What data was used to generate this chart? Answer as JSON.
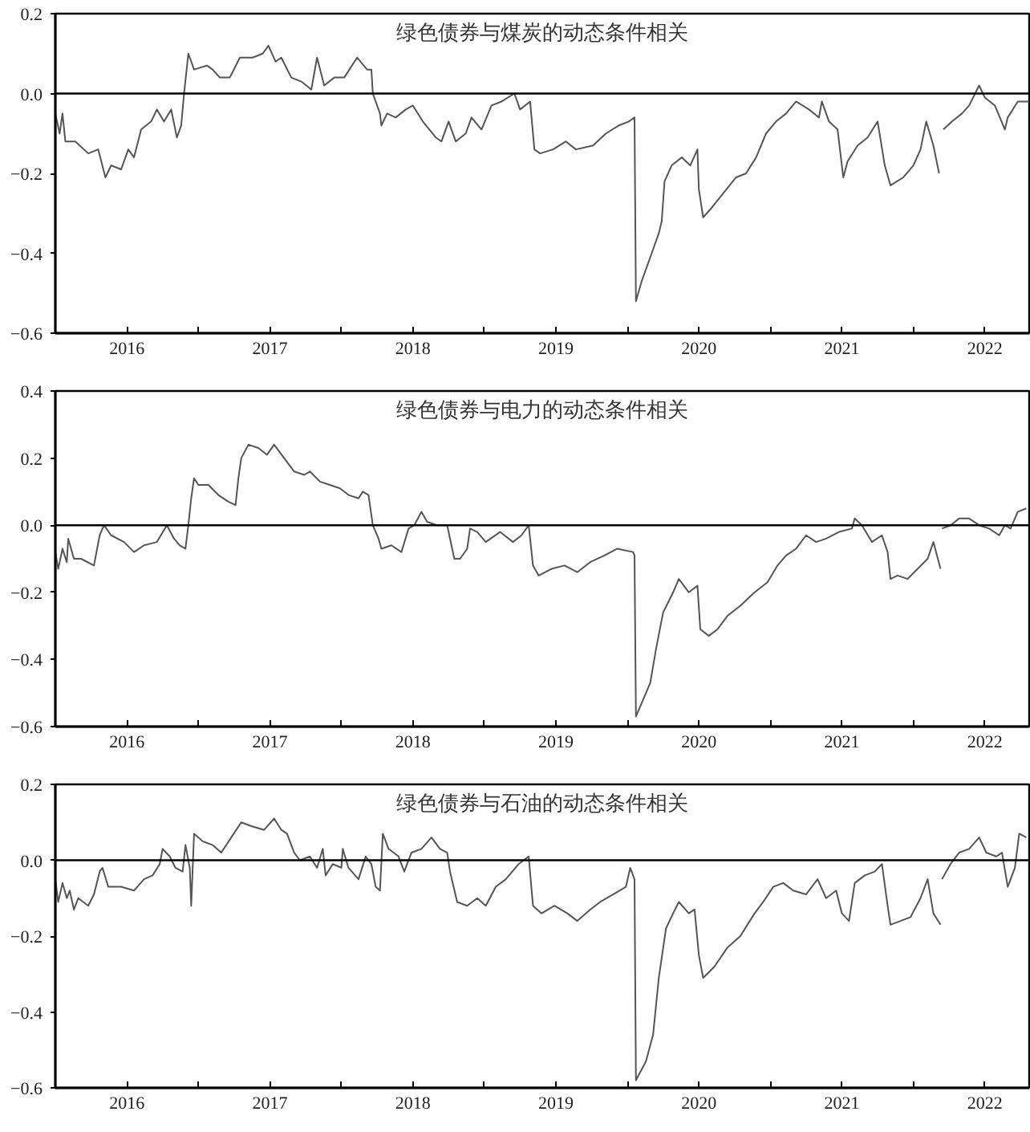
{
  "chart_data": [
    {
      "type": "line",
      "title": "绿色债券与煤炭的动态条件相关",
      "color": "#555555",
      "grid": false,
      "xlim": [
        2016.0,
        2022.81
      ],
      "ylim": [
        -0.6,
        0.2
      ],
      "xticks": [
        {
          "value": 2016.5,
          "label": "2016"
        },
        {
          "value": 2017,
          "label": null
        },
        {
          "value": 2017.5,
          "label": "2017"
        },
        {
          "value": 2018,
          "label": null
        },
        {
          "value": 2018.5,
          "label": "2018"
        },
        {
          "value": 2019,
          "label": null
        },
        {
          "value": 2019.5,
          "label": "2019"
        },
        {
          "value": 2020,
          "label": null
        },
        {
          "value": 2020.5,
          "label": "2020"
        },
        {
          "value": 2021,
          "label": null
        },
        {
          "value": 2021.5,
          "label": "2021"
        },
        {
          "value": 2022,
          "label": null
        },
        {
          "value": 2022.5,
          "label": "2022"
        }
      ],
      "yticks": [
        {
          "value": -0.6,
          "label": "−0.6"
        },
        {
          "value": -0.4,
          "label": "−0.4"
        },
        {
          "value": -0.2,
          "label": "−0.2"
        },
        {
          "value": 0,
          "label": "0.0"
        },
        {
          "value": 0.2,
          "label": "0.2"
        }
      ],
      "ref_lines": [
        {
          "axis": "y",
          "value": 0,
          "label": null,
          "color": "#000000"
        }
      ],
      "x": [
        2016.0,
        2016.03,
        2016.05,
        2016.07,
        2016.14,
        2016.23,
        2016.3,
        2016.35,
        2016.39,
        2016.46,
        2016.51,
        2016.55,
        2016.6,
        2016.67,
        2016.71,
        2016.76,
        2016.81,
        2016.85,
        2016.88,
        2016.9,
        2016.93,
        2016.97,
        2017.06,
        2017.1,
        2017.15,
        2017.22,
        2017.29,
        2017.38,
        2017.45,
        2017.49,
        2017.54,
        2017.58,
        2017.65,
        2017.72,
        2017.79,
        2017.83,
        2017.88,
        2017.95,
        2018.02,
        2018.11,
        2018.18,
        2018.21,
        2018.22,
        2018.27,
        2018.28,
        2018.32,
        2018.38,
        2018.45,
        2018.5,
        2018.57,
        2018.66,
        2018.7,
        2018.75,
        2018.8,
        2018.87,
        2018.91,
        2018.98,
        2019.05,
        2019.12,
        2019.21,
        2019.25,
        2019.32,
        2019.35,
        2019.39,
        2019.48,
        2019.57,
        2019.64,
        2019.76,
        2019.85,
        2019.94,
        2020.01,
        2020.05,
        2020.06,
        2020.1,
        2020.17,
        2020.22,
        2020.24,
        2020.26,
        2020.31,
        2020.38,
        2020.44,
        2020.49,
        2020.5,
        2020.53,
        2020.58,
        2020.67,
        2020.76,
        2020.83,
        2020.9,
        2020.97,
        2021.04,
        2021.11,
        2021.18,
        2021.27,
        2021.34,
        2021.36,
        2021.41,
        2021.47,
        2021.51,
        2021.54,
        2021.61,
        2021.68,
        2021.75,
        2021.8,
        2021.84,
        2021.93,
        2022.0,
        2022.05,
        2022.09,
        2022.14,
        2022.18,
        2022.195,
        2022.21,
        2022.27,
        2022.34,
        2022.39,
        2022.46,
        2022.5,
        2022.57,
        2022.64,
        2022.66,
        2022.73,
        2022.81
      ],
      "values": [
        -0.05,
        -0.1,
        -0.05,
        -0.12,
        -0.12,
        -0.15,
        -0.14,
        -0.21,
        -0.18,
        -0.19,
        -0.14,
        -0.16,
        -0.09,
        -0.07,
        -0.04,
        -0.07,
        -0.04,
        -0.11,
        -0.08,
        0.0,
        0.1,
        0.06,
        0.07,
        0.06,
        0.04,
        0.04,
        0.09,
        0.09,
        0.1,
        0.12,
        0.08,
        0.09,
        0.04,
        0.03,
        0.01,
        0.09,
        0.02,
        0.04,
        0.04,
        0.09,
        0.06,
        0.06,
        0.0,
        -0.05,
        -0.08,
        -0.05,
        -0.06,
        -0.04,
        -0.03,
        -0.07,
        -0.11,
        -0.12,
        -0.07,
        -0.12,
        -0.1,
        -0.06,
        -0.09,
        -0.03,
        -0.02,
        0.0,
        -0.04,
        -0.02,
        -0.14,
        -0.15,
        -0.14,
        -0.12,
        -0.14,
        -0.13,
        -0.1,
        -0.08,
        -0.07,
        -0.06,
        -0.52,
        -0.47,
        -0.4,
        -0.35,
        -0.32,
        -0.22,
        -0.18,
        -0.16,
        -0.18,
        -0.14,
        -0.24,
        -0.31,
        -0.29,
        -0.25,
        -0.21,
        -0.2,
        -0.16,
        -0.1,
        -0.07,
        -0.05,
        -0.02,
        -0.04,
        -0.06,
        -0.02,
        -0.07,
        -0.09,
        -0.21,
        -0.17,
        -0.13,
        -0.11,
        -0.07,
        -0.18,
        -0.23,
        -0.21,
        -0.18,
        -0.14,
        -0.07,
        -0.13,
        -0.2,
        null,
        -0.09,
        -0.07,
        -0.05,
        -0.03,
        0.02,
        -0.01,
        -0.03,
        -0.09,
        -0.06,
        -0.02,
        -0.02
      ]
    },
    {
      "type": "line",
      "title": "绿色债券与电力的动态条件相关",
      "color": "#555555",
      "grid": false,
      "xlim": [
        2016.0,
        2022.81
      ],
      "ylim": [
        -0.6,
        0.4
      ],
      "xticks": [
        {
          "value": 2016.5,
          "label": "2016"
        },
        {
          "value": 2017,
          "label": null
        },
        {
          "value": 2017.5,
          "label": "2017"
        },
        {
          "value": 2018,
          "label": null
        },
        {
          "value": 2018.5,
          "label": "2018"
        },
        {
          "value": 2019,
          "label": null
        },
        {
          "value": 2019.5,
          "label": "2019"
        },
        {
          "value": 2020,
          "label": null
        },
        {
          "value": 2020.5,
          "label": "2020"
        },
        {
          "value": 2021,
          "label": null
        },
        {
          "value": 2021.5,
          "label": "2021"
        },
        {
          "value": 2022,
          "label": null
        },
        {
          "value": 2022.5,
          "label": "2022"
        }
      ],
      "yticks": [
        {
          "value": -0.6,
          "label": "−0.6"
        },
        {
          "value": -0.4,
          "label": "−0.4"
        },
        {
          "value": -0.2,
          "label": "−0.2"
        },
        {
          "value": 0,
          "label": "0.0"
        },
        {
          "value": 0.2,
          "label": "0.2"
        },
        {
          "value": 0.4,
          "label": "0.4"
        }
      ],
      "ref_lines": [
        {
          "axis": "y",
          "value": 0,
          "label": null,
          "color": "#000000"
        }
      ],
      "x": [
        2016.0,
        2016.02,
        2016.05,
        2016.08,
        2016.09,
        2016.13,
        2016.18,
        2016.27,
        2016.31,
        2016.34,
        2016.39,
        2016.48,
        2016.55,
        2016.62,
        2016.71,
        2016.78,
        2016.83,
        2016.87,
        2016.91,
        2016.93,
        2016.95,
        2016.97,
        2017.0,
        2017.07,
        2017.14,
        2017.21,
        2017.26,
        2017.28,
        2017.3,
        2017.35,
        2017.42,
        2017.48,
        2017.53,
        2017.6,
        2017.67,
        2017.74,
        2017.78,
        2017.85,
        2017.92,
        2017.99,
        2018.05,
        2018.12,
        2018.15,
        2018.19,
        2018.22,
        2018.26,
        2018.28,
        2018.35,
        2018.42,
        2018.47,
        2018.51,
        2018.56,
        2018.6,
        2018.67,
        2018.74,
        2018.79,
        2018.83,
        2018.88,
        2018.9,
        2018.95,
        2019.01,
        2019.11,
        2019.2,
        2019.26,
        2019.31,
        2019.34,
        2019.38,
        2019.47,
        2019.56,
        2019.65,
        2019.74,
        2019.84,
        2019.93,
        2020.04,
        2020.05,
        2020.06,
        2020.11,
        2020.16,
        2020.2,
        2020.25,
        2020.32,
        2020.36,
        2020.43,
        2020.49,
        2020.51,
        2020.57,
        2020.63,
        2020.7,
        2020.79,
        2020.89,
        2020.98,
        2021.05,
        2021.11,
        2021.18,
        2021.25,
        2021.32,
        2021.39,
        2021.48,
        2021.57,
        2021.59,
        2021.64,
        2021.71,
        2021.78,
        2021.82,
        2021.84,
        2021.89,
        2021.96,
        2022.03,
        2022.1,
        2022.14,
        2022.19,
        2022.195,
        2022.2,
        2022.26,
        2022.32,
        2022.39,
        2022.46,
        2022.53,
        2022.6,
        2022.64,
        2022.68,
        2022.73,
        2022.79
      ],
      "values": [
        -0.08,
        -0.13,
        -0.07,
        -0.11,
        -0.04,
        -0.1,
        -0.1,
        -0.12,
        -0.03,
        0.0,
        -0.03,
        -0.05,
        -0.08,
        -0.06,
        -0.05,
        0.0,
        -0.04,
        -0.06,
        -0.07,
        0.0,
        0.08,
        0.14,
        0.12,
        0.12,
        0.09,
        0.07,
        0.06,
        0.14,
        0.2,
        0.24,
        0.23,
        0.21,
        0.24,
        0.2,
        0.16,
        0.15,
        0.16,
        0.13,
        0.12,
        0.11,
        0.09,
        0.08,
        0.1,
        0.09,
        0.0,
        -0.04,
        -0.07,
        -0.06,
        -0.08,
        -0.01,
        0.0,
        0.04,
        0.01,
        0.0,
        0.0,
        -0.1,
        -0.1,
        -0.07,
        -0.01,
        -0.02,
        -0.05,
        -0.02,
        -0.05,
        -0.03,
        0.0,
        -0.12,
        -0.15,
        -0.13,
        -0.12,
        -0.14,
        -0.11,
        -0.09,
        -0.07,
        -0.08,
        -0.09,
        -0.57,
        -0.52,
        -0.47,
        -0.37,
        -0.26,
        -0.2,
        -0.16,
        -0.2,
        -0.18,
        -0.31,
        -0.33,
        -0.31,
        -0.27,
        -0.24,
        -0.2,
        -0.17,
        -0.12,
        -0.09,
        -0.07,
        -0.03,
        -0.05,
        -0.04,
        -0.02,
        -0.01,
        0.02,
        0.0,
        -0.05,
        -0.03,
        -0.08,
        -0.16,
        -0.15,
        -0.16,
        -0.13,
        -0.1,
        -0.05,
        -0.13,
        null,
        -0.01,
        0.0,
        0.02,
        0.02,
        0.0,
        -0.01,
        -0.03,
        0.0,
        -0.01,
        0.04,
        0.05
      ]
    },
    {
      "type": "line",
      "title": "绿色债券与石油的动态条件相关",
      "color": "#555555",
      "grid": false,
      "xlim": [
        2016.0,
        2022.81
      ],
      "ylim": [
        -0.6,
        0.2
      ],
      "xticks": [
        {
          "value": 2016.5,
          "label": "2016"
        },
        {
          "value": 2017,
          "label": null
        },
        {
          "value": 2017.5,
          "label": "2017"
        },
        {
          "value": 2018,
          "label": null
        },
        {
          "value": 2018.5,
          "label": "2018"
        },
        {
          "value": 2019,
          "label": null
        },
        {
          "value": 2019.5,
          "label": "2019"
        },
        {
          "value": 2020,
          "label": null
        },
        {
          "value": 2020.5,
          "label": "2020"
        },
        {
          "value": 2021,
          "label": null
        },
        {
          "value": 2021.5,
          "label": "2021"
        },
        {
          "value": 2022,
          "label": null
        },
        {
          "value": 2022.5,
          "label": "2022"
        }
      ],
      "yticks": [
        {
          "value": -0.6,
          "label": "−0.6"
        },
        {
          "value": -0.4,
          "label": "−0.4"
        },
        {
          "value": -0.2,
          "label": "−0.2"
        },
        {
          "value": 0,
          "label": "0.0"
        },
        {
          "value": 0.2,
          "label": "0.2"
        }
      ],
      "ref_lines": [
        {
          "axis": "y",
          "value": 0,
          "label": null,
          "color": "#000000"
        }
      ],
      "x": [
        2016.0,
        2016.02,
        2016.05,
        2016.08,
        2016.1,
        2016.13,
        2016.16,
        2016.23,
        2016.27,
        2016.31,
        2016.33,
        2016.37,
        2016.46,
        2016.55,
        2016.62,
        2016.68,
        2016.73,
        2016.75,
        2016.8,
        2016.84,
        2016.89,
        2016.91,
        2016.94,
        2016.95,
        2016.97,
        2017.03,
        2017.1,
        2017.16,
        2017.23,
        2017.3,
        2017.37,
        2017.46,
        2017.53,
        2017.58,
        2017.62,
        2017.67,
        2017.71,
        2017.78,
        2017.83,
        2017.87,
        2017.89,
        2017.94,
        2018.0,
        2018.01,
        2018.05,
        2018.12,
        2018.17,
        2018.21,
        2018.24,
        2018.27,
        2018.29,
        2018.33,
        2018.4,
        2018.44,
        2018.49,
        2018.56,
        2018.63,
        2018.69,
        2018.74,
        2018.76,
        2018.81,
        2018.88,
        2018.95,
        2019.01,
        2019.08,
        2019.15,
        2019.24,
        2019.31,
        2019.34,
        2019.4,
        2019.49,
        2019.58,
        2019.65,
        2019.74,
        2019.81,
        2019.9,
        2019.99,
        2020.02,
        2020.05,
        2020.06,
        2020.13,
        2020.18,
        2020.22,
        2020.27,
        2020.32,
        2020.36,
        2020.43,
        2020.47,
        2020.5,
        2020.53,
        2020.61,
        2020.7,
        2020.79,
        2020.89,
        2020.95,
        2021.02,
        2021.09,
        2021.16,
        2021.25,
        2021.33,
        2021.39,
        2021.46,
        2021.5,
        2021.55,
        2021.59,
        2021.66,
        2021.73,
        2021.78,
        2021.82,
        2021.84,
        2021.91,
        2021.98,
        2022.05,
        2022.1,
        2022.14,
        2022.19,
        2022.195,
        2022.2,
        2022.26,
        2022.32,
        2022.39,
        2022.46,
        2022.51,
        2022.58,
        2022.62,
        2022.66,
        2022.71,
        2022.74,
        2022.79
      ],
      "values": [
        -0.05,
        -0.11,
        -0.06,
        -0.1,
        -0.08,
        -0.13,
        -0.1,
        -0.12,
        -0.09,
        -0.03,
        -0.02,
        -0.07,
        -0.07,
        -0.08,
        -0.05,
        -0.04,
        -0.01,
        0.03,
        0.01,
        -0.02,
        -0.03,
        0.04,
        -0.02,
        -0.12,
        0.07,
        0.05,
        0.04,
        0.02,
        0.06,
        0.1,
        0.09,
        0.08,
        0.11,
        0.08,
        0.07,
        0.02,
        0.0,
        0.01,
        -0.02,
        0.03,
        -0.04,
        -0.01,
        -0.02,
        0.03,
        -0.02,
        -0.05,
        0.01,
        -0.01,
        -0.07,
        -0.08,
        0.07,
        0.03,
        0.01,
        -0.03,
        0.02,
        0.03,
        0.06,
        0.03,
        0.02,
        -0.03,
        -0.11,
        -0.12,
        -0.1,
        -0.12,
        -0.07,
        -0.05,
        -0.01,
        0.01,
        -0.12,
        -0.14,
        -0.12,
        -0.14,
        -0.16,
        -0.13,
        -0.11,
        -0.09,
        -0.07,
        -0.02,
        -0.05,
        -0.58,
        -0.53,
        -0.46,
        -0.31,
        -0.18,
        -0.14,
        -0.11,
        -0.14,
        -0.13,
        -0.25,
        -0.31,
        -0.28,
        -0.23,
        -0.2,
        -0.14,
        -0.11,
        -0.07,
        -0.06,
        -0.08,
        -0.09,
        -0.05,
        -0.1,
        -0.08,
        -0.14,
        -0.16,
        -0.06,
        -0.04,
        -0.03,
        -0.01,
        -0.12,
        -0.17,
        -0.16,
        -0.15,
        -0.1,
        -0.05,
        -0.14,
        -0.17,
        null,
        -0.05,
        -0.01,
        0.02,
        0.03,
        0.06,
        0.02,
        0.01,
        0.02,
        -0.07,
        -0.02,
        0.07,
        0.06
      ]
    }
  ]
}
